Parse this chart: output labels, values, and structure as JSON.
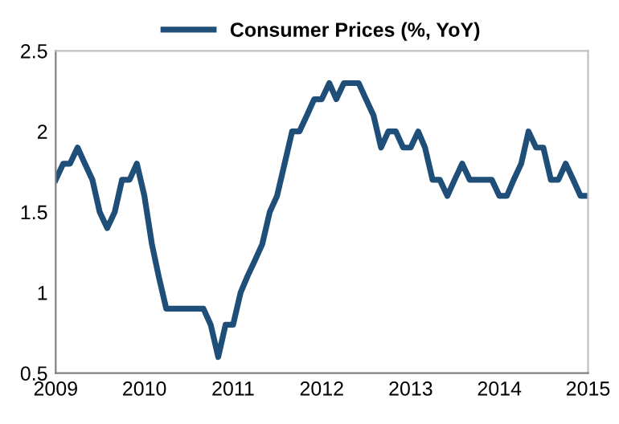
{
  "chart_data": {
    "type": "line",
    "x": [
      "2009-01",
      "2009-02",
      "2009-03",
      "2009-04",
      "2009-05",
      "2009-06",
      "2009-07",
      "2009-08",
      "2009-09",
      "2009-10",
      "2009-11",
      "2009-12",
      "2010-01",
      "2010-02",
      "2010-03",
      "2010-04",
      "2010-05",
      "2010-06",
      "2010-07",
      "2010-08",
      "2010-09",
      "2010-10",
      "2010-11",
      "2010-12",
      "2011-01",
      "2011-02",
      "2011-03",
      "2011-04",
      "2011-05",
      "2011-06",
      "2011-07",
      "2011-08",
      "2011-09",
      "2011-10",
      "2011-11",
      "2011-12",
      "2012-01",
      "2012-02",
      "2012-03",
      "2012-04",
      "2012-05",
      "2012-06",
      "2012-07",
      "2012-08",
      "2012-09",
      "2012-10",
      "2012-11",
      "2012-12",
      "2013-01",
      "2013-02",
      "2013-03",
      "2013-04",
      "2013-05",
      "2013-06",
      "2013-07",
      "2013-08",
      "2013-09",
      "2013-10",
      "2013-11",
      "2013-12",
      "2014-01",
      "2014-02",
      "2014-03",
      "2014-04",
      "2014-05",
      "2014-06",
      "2014-07",
      "2014-08",
      "2014-09",
      "2014-10",
      "2014-11",
      "2014-12",
      "2015-01"
    ],
    "series": [
      {
        "name": "Consumer Prices (%, YoY)",
        "color": "#1f4e79",
        "values": [
          1.7,
          1.8,
          1.8,
          1.9,
          1.8,
          1.7,
          1.5,
          1.4,
          1.5,
          1.7,
          1.7,
          1.8,
          1.6,
          1.3,
          1.1,
          0.9,
          0.9,
          0.9,
          0.9,
          0.9,
          0.9,
          0.8,
          0.6,
          0.8,
          0.8,
          1.0,
          1.1,
          1.2,
          1.3,
          1.5,
          1.6,
          1.8,
          2.0,
          2.0,
          2.1,
          2.2,
          2.2,
          2.3,
          2.2,
          2.3,
          2.3,
          2.3,
          2.2,
          2.1,
          1.9,
          2.0,
          2.0,
          1.9,
          1.9,
          2.0,
          1.9,
          1.7,
          1.7,
          1.6,
          1.7,
          1.8,
          1.7,
          1.7,
          1.7,
          1.7,
          1.6,
          1.6,
          1.7,
          1.8,
          2.0,
          1.9,
          1.9,
          1.7,
          1.7,
          1.8,
          1.7,
          1.6,
          1.6
        ]
      }
    ],
    "xlim": [
      "2009-01",
      "2015-01"
    ],
    "xticks": [
      {
        "value": "2009-01",
        "label": "2009"
      },
      {
        "value": "2010-01",
        "label": "2010"
      },
      {
        "value": "2011-01",
        "label": "2011"
      },
      {
        "value": "2012-01",
        "label": "2012"
      },
      {
        "value": "2013-01",
        "label": "2013"
      },
      {
        "value": "2014-01",
        "label": "2014"
      },
      {
        "value": "2015-01",
        "label": "2015"
      }
    ],
    "ylim": [
      0.5,
      2.5
    ],
    "yticks": [
      0.5,
      1,
      1.5,
      2,
      2.5
    ],
    "legend": "top",
    "grid": false,
    "marker": "none",
    "line_style": "solid"
  }
}
